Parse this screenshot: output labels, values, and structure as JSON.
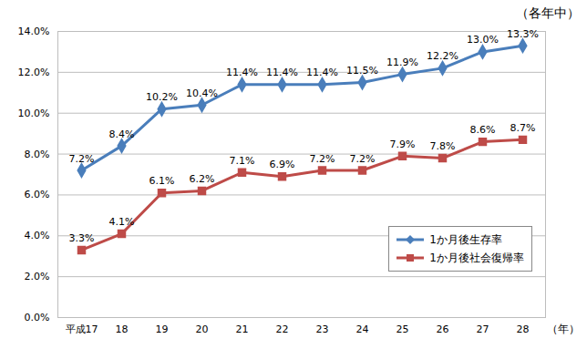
{
  "chart_data": {
    "type": "line",
    "subtitle": "（各年中）",
    "x_label": "（年）",
    "categories": [
      "平成17",
      "18",
      "19",
      "20",
      "21",
      "22",
      "23",
      "24",
      "25",
      "26",
      "27",
      "28"
    ],
    "series": [
      {
        "name": "1か月後生存率",
        "color": "#4a7ebb",
        "marker": "diamond",
        "values": [
          7.2,
          8.4,
          10.2,
          10.4,
          11.4,
          11.4,
          11.4,
          11.5,
          11.9,
          12.2,
          13.0,
          13.3
        ],
        "value_labels": [
          "7.2%",
          "8.4%",
          "10.2%",
          "10.4%",
          "11.4%",
          "11.4%",
          "11.4%",
          "11.5%",
          "11.9%",
          "12.2%",
          "13.0%",
          "13.3%"
        ]
      },
      {
        "name": "1か月後社会復帰率",
        "color": "#be4b48",
        "marker": "square",
        "values": [
          3.3,
          4.1,
          6.1,
          6.2,
          7.1,
          6.9,
          7.2,
          7.2,
          7.9,
          7.8,
          8.6,
          8.7
        ],
        "value_labels": [
          "3.3%",
          "4.1%",
          "6.1%",
          "6.2%",
          "7.1%",
          "6.9%",
          "7.2%",
          "7.2%",
          "7.9%",
          "7.8%",
          "8.6%",
          "8.7%"
        ]
      }
    ],
    "ylim": [
      0,
      14
    ],
    "yticks": [
      {
        "value": 0,
        "label": "0.0%"
      },
      {
        "value": 2,
        "label": "2.0%"
      },
      {
        "value": 4,
        "label": "4.0%"
      },
      {
        "value": 6,
        "label": "6.0%"
      },
      {
        "value": 8,
        "label": "8.0%"
      },
      {
        "value": 10,
        "label": "10.0%"
      },
      {
        "value": 12,
        "label": "12.0%"
      },
      {
        "value": 14,
        "label": "14.0%"
      }
    ],
    "grid": true,
    "data_labels": true,
    "legend": "lower right"
  }
}
